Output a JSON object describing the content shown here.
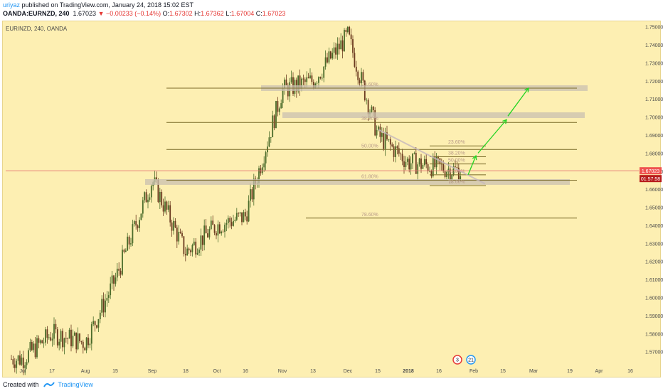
{
  "header": {
    "username": "uriyaz",
    "published": " published on TradingView.com, January 24, 2018 15:02 EST",
    "symbol_info": "OANDA:EURNZD, 240",
    "last": "1.67023",
    "change": "▼ −0.00233 (−0.14%)",
    "o_label": "O:",
    "o_value": "1.67302",
    "h_label": "H:",
    "h_value": "1.67362",
    "l_label": "L:",
    "l_value": "1.67004",
    "c_label": "C:",
    "c_value": "1.67023"
  },
  "chart_title": "EUR/NZD, 240, OANDA",
  "footer": {
    "created_with": "Created with",
    "brand": "TradingView"
  },
  "colors": {
    "background": "#fdefb2",
    "level_line": "#7a6a28",
    "zone": "#c9c0b0",
    "arrow": "#22d422",
    "price_line": "#e57373",
    "price_label_bg": "#ef5350",
    "timer_bg": "#b71c1c",
    "up_candle": "#4a6b2a",
    "down_candle": "#6b3a1f"
  },
  "chart_data": {
    "type": "candlestick",
    "title": "EUR/NZD, 240, OANDA",
    "xlabel": "",
    "ylabel": "",
    "ylim": [
      1.562,
      1.753
    ],
    "x_ticks": [
      "Jul",
      "17",
      "Aug",
      "15",
      "Sep",
      "18",
      "Oct",
      "16",
      "Nov",
      "13",
      "Dec",
      "15",
      "2018",
      "16",
      "Feb",
      "15",
      "Mar",
      "19",
      "Apr",
      "16"
    ],
    "y_ticks": [
      "1.75000",
      "1.74000",
      "1.73000",
      "1.72000",
      "1.71000",
      "1.70000",
      "1.69000",
      "1.68000",
      "1.67000",
      "1.66000",
      "1.65000",
      "1.64000",
      "1.63000",
      "1.62000",
      "1.61000",
      "1.60000",
      "1.59000",
      "1.58000",
      "1.57000"
    ],
    "current_price": "1.67023",
    "countdown": "01:57:58",
    "path": [
      [
        "Jul",
        1.566
      ],
      [
        "17",
        1.58
      ],
      [
        "Aug",
        1.575
      ],
      [
        "15",
        1.61
      ],
      [
        "Sep",
        1.665
      ],
      [
        "18",
        1.625
      ],
      [
        "Oct",
        1.64
      ],
      [
        "16",
        1.645
      ],
      [
        "Nov",
        1.715
      ],
      [
        "13",
        1.72
      ],
      [
        "Dec",
        1.745
      ],
      [
        "15",
        1.69
      ],
      [
        "2018",
        1.675
      ],
      [
        "16",
        1.67
      ]
    ],
    "fib_labels": [
      "23.60%",
      "38.20%",
      "50.00%",
      "61.80%",
      "78.60%",
      "23.60%",
      "38.20%",
      "50.00%",
      "61.80%",
      "78.60%"
    ],
    "fib_levels": [
      1.716,
      1.697,
      1.682,
      1.665,
      1.644,
      1.684,
      1.678,
      1.674,
      1.668,
      1.662
    ],
    "zones": [
      1.716,
      1.701,
      1.664
    ],
    "event_badges": [
      "3",
      "21"
    ]
  }
}
